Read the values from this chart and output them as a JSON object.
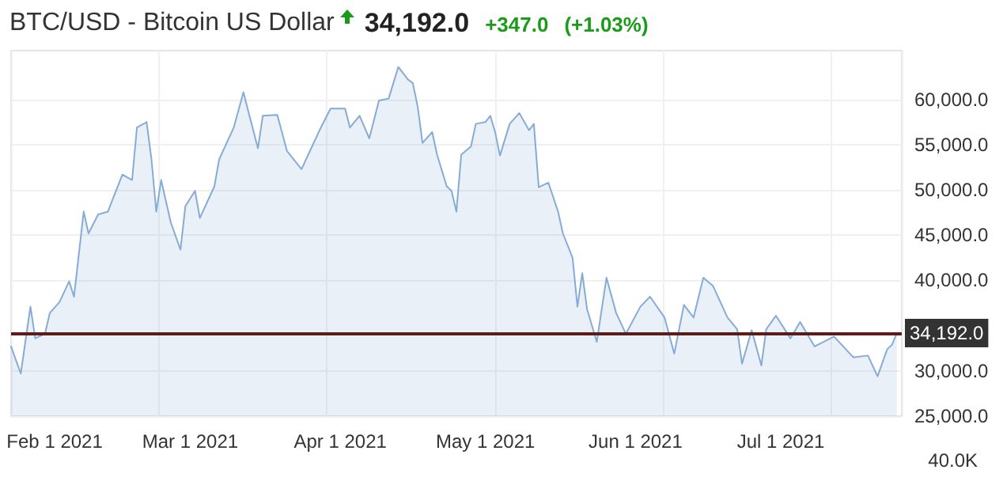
{
  "chart_data": {
    "type": "area",
    "title": "BTC/USD - Bitcoin US Dollar",
    "annotations": [
      "34,192.0",
      "+347.0",
      "(+1.03%)",
      "40.0K"
    ],
    "x": [
      "2021-01-23",
      "2021-01-25",
      "2021-01-27",
      "2021-01-28",
      "2021-01-30",
      "2021-01-31",
      "2021-02-02",
      "2021-02-04",
      "2021-02-05",
      "2021-02-07",
      "2021-02-08",
      "2021-02-10",
      "2021-02-12",
      "2021-02-13",
      "2021-02-15",
      "2021-02-17",
      "2021-02-18",
      "2021-02-20",
      "2021-02-21",
      "2021-02-22",
      "2021-02-23",
      "2021-02-25",
      "2021-02-27",
      "2021-02-28",
      "2021-03-02",
      "2021-03-03",
      "2021-03-06",
      "2021-03-07",
      "2021-03-10",
      "2021-03-12",
      "2021-03-13",
      "2021-03-15",
      "2021-03-16",
      "2021-03-19",
      "2021-03-21",
      "2021-03-24",
      "2021-03-26",
      "2021-03-28",
      "2021-03-30",
      "2021-04-02",
      "2021-04-03",
      "2021-04-05",
      "2021-04-07",
      "2021-04-09",
      "2021-04-11",
      "2021-04-13",
      "2021-04-15",
      "2021-04-16",
      "2021-04-17",
      "2021-04-18",
      "2021-04-20",
      "2021-04-21",
      "2021-04-23",
      "2021-04-24",
      "2021-04-25",
      "2021-04-26",
      "2021-04-28",
      "2021-04-29",
      "2021-05-01",
      "2021-05-02",
      "2021-05-03",
      "2021-05-04",
      "2021-05-06",
      "2021-05-08",
      "2021-05-10",
      "2021-05-11",
      "2021-05-12",
      "2021-05-14",
      "2021-05-16",
      "2021-05-17",
      "2021-05-19",
      "2021-05-20",
      "2021-05-21",
      "2021-05-22",
      "2021-05-24",
      "2021-05-26",
      "2021-05-28",
      "2021-05-30",
      "2021-06-02",
      "2021-06-04",
      "2021-06-07",
      "2021-06-09",
      "2021-06-11",
      "2021-06-13",
      "2021-06-15",
      "2021-06-17",
      "2021-06-20",
      "2021-06-22",
      "2021-06-23",
      "2021-06-25",
      "2021-06-27",
      "2021-06-28",
      "2021-06-30",
      "2021-07-03",
      "2021-07-05",
      "2021-07-08",
      "2021-07-12",
      "2021-07-16",
      "2021-07-19",
      "2021-07-21",
      "2021-07-23",
      "2021-07-24",
      "2021-07-25"
    ],
    "series": [
      {
        "color": "#86acd6",
        "values": [
          32700,
          29700,
          37100,
          33600,
          34100,
          36400,
          37600,
          39900,
          38200,
          47600,
          45200,
          47300,
          47600,
          49000,
          51700,
          51100,
          56900,
          57500,
          53400,
          47600,
          51100,
          46400,
          43400,
          48200,
          49900,
          46900,
          50400,
          53400,
          56900,
          60800,
          58700,
          54600,
          58200,
          58300,
          54300,
          52300,
          54600,
          56900,
          59000,
          59000,
          56900,
          58200,
          55700,
          59900,
          60100,
          63600,
          62200,
          61800,
          59200,
          55200,
          56400,
          53900,
          50400,
          49900,
          47600,
          53900,
          54800,
          57300,
          57500,
          58200,
          56400,
          53800,
          57300,
          58500,
          56600,
          57300,
          50300,
          50800,
          47600,
          45200,
          42500,
          37100,
          40800,
          36800,
          33200,
          40300,
          36400,
          34100,
          37100,
          38200,
          35900,
          31900,
          37300,
          35900,
          40300,
          39400,
          35900,
          34600,
          30800,
          34500,
          30600,
          34600,
          36100,
          33600,
          35400,
          32700,
          33800,
          31500,
          31700,
          29400,
          32400,
          32900,
          34192
        ]
      }
    ],
    "xlim": [
      "2021-01-23",
      "2021-07-26"
    ],
    "xticks": [
      {
        "value": "2021-02-01",
        "label": "Feb 1 2021"
      },
      {
        "value": "2021-03-01",
        "label": "Mar 1 2021"
      },
      {
        "value": "2021-04-01",
        "label": "Apr 1 2021"
      },
      {
        "value": "2021-05-01",
        "label": "May 1 2021"
      },
      {
        "value": "2021-06-01",
        "label": "Jun 1 2021"
      },
      {
        "value": "2021-07-01",
        "label": "Jul 1 2021"
      }
    ],
    "ylim": [
      25000,
      65400
    ],
    "yticks": [
      {
        "value": 25000,
        "label": "25,000.0"
      },
      {
        "value": 30000,
        "label": "30,000.0"
      },
      {
        "value": 40000,
        "label": "40,000.0"
      },
      {
        "value": 45000,
        "label": "45,000.0"
      },
      {
        "value": 50000,
        "label": "50,000.0"
      },
      {
        "value": 55000,
        "label": "55,000.0"
      },
      {
        "value": 60000,
        "label": "60,000.0"
      }
    ],
    "ref_lines": [
      {
        "axis": "y",
        "value": 34192,
        "label": "34,192.0",
        "color": "#5b1c1c"
      }
    ],
    "grid": true,
    "marker": "none",
    "line_style": "solid"
  }
}
